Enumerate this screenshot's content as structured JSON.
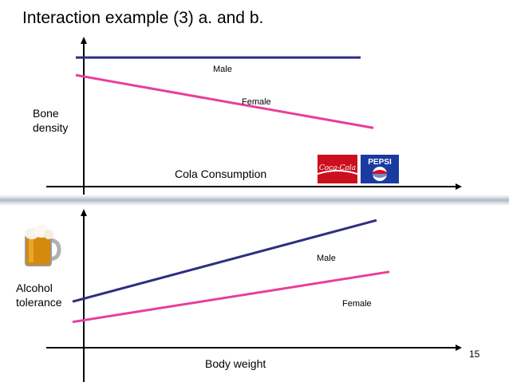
{
  "slide": {
    "title": "Interaction example (3) a. and b.",
    "page_number": "15"
  },
  "chart_data": [
    {
      "type": "line",
      "xlabel": "Cola Consumption",
      "ylabel_lines": [
        "Bone",
        "density"
      ],
      "series": [
        {
          "name": "Male",
          "color": "#2e2e80",
          "start": 0.88,
          "end": 0.88
        },
        {
          "name": "Female",
          "color": "#e83e9c",
          "start": 0.76,
          "end": 0.4
        }
      ],
      "logos": [
        "coca-cola-logo",
        "pepsi-logo"
      ],
      "logo_text": {
        "coke": "Coca-Cola",
        "pepsi": "PEPSI"
      }
    },
    {
      "type": "line",
      "xlabel": "Body weight",
      "ylabel_lines": [
        "Alcohol",
        "tolerance"
      ],
      "series": [
        {
          "name": "Male",
          "color": "#2e2e80",
          "start": 0.34,
          "end": 0.94
        },
        {
          "name": "Female",
          "color": "#e83e9c",
          "start": 0.19,
          "end": 0.56
        }
      ],
      "logos": [
        "beer-mug-icon"
      ]
    }
  ]
}
